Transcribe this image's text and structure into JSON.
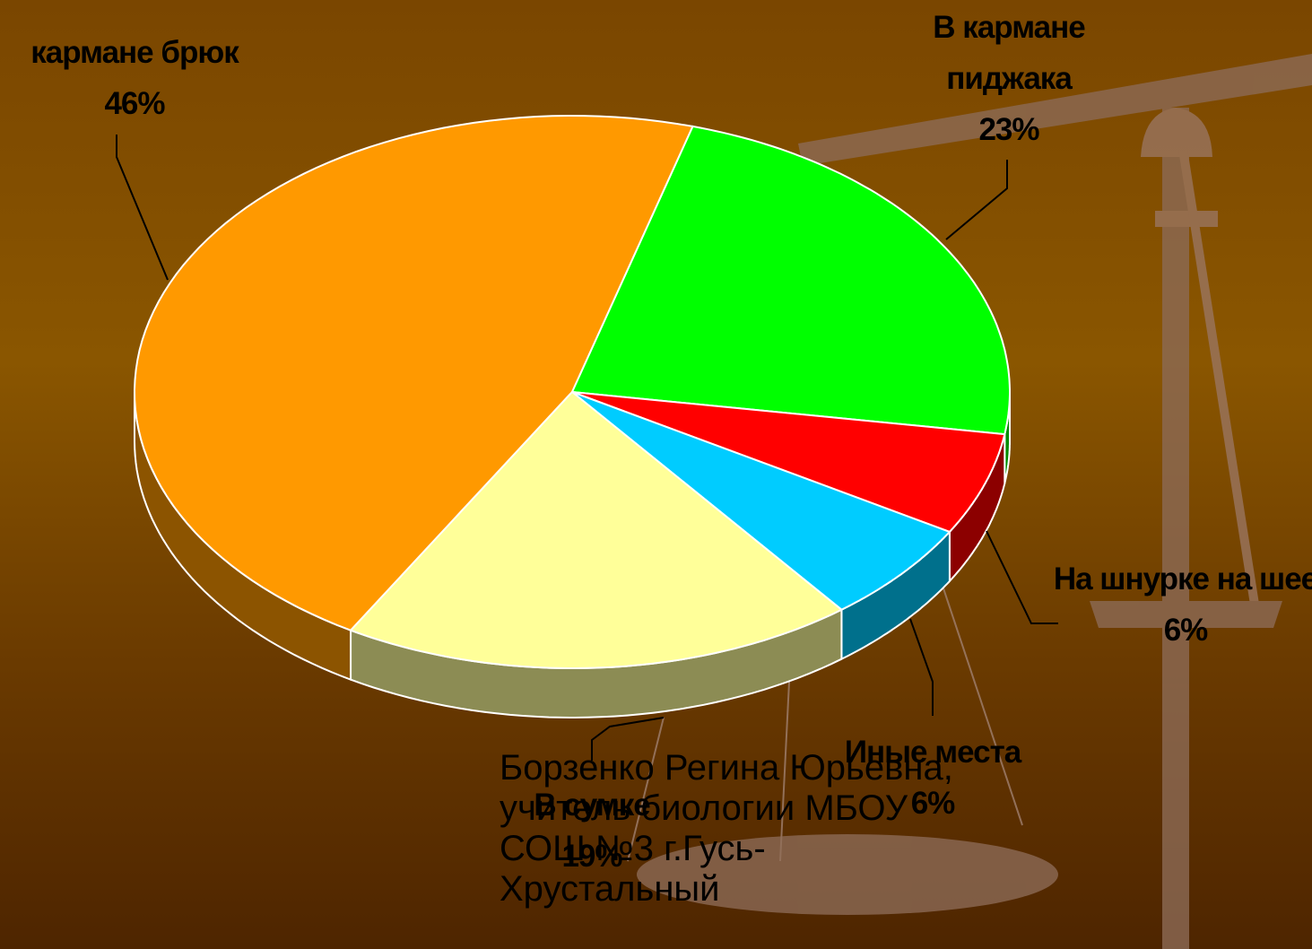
{
  "chart_data": {
    "type": "pie3d",
    "categories": [
      "кармане брюк",
      "В кармане пиджака",
      "На шнурке на шее",
      "Иные места",
      "В сумке"
    ],
    "values": [
      46,
      23,
      6,
      6,
      19
    ],
    "value_labels": [
      "46%",
      "23%",
      "6%",
      "6%",
      "19%"
    ],
    "colors": [
      "#ff9900",
      "#00ff00",
      "#ff0000",
      "#00ccff",
      "#ffff99"
    ],
    "footnote": "Борзенко Регина Юрьевна, учитель биологии МБОУ СОШ №3 г.Гусь-Хрустальный"
  }
}
